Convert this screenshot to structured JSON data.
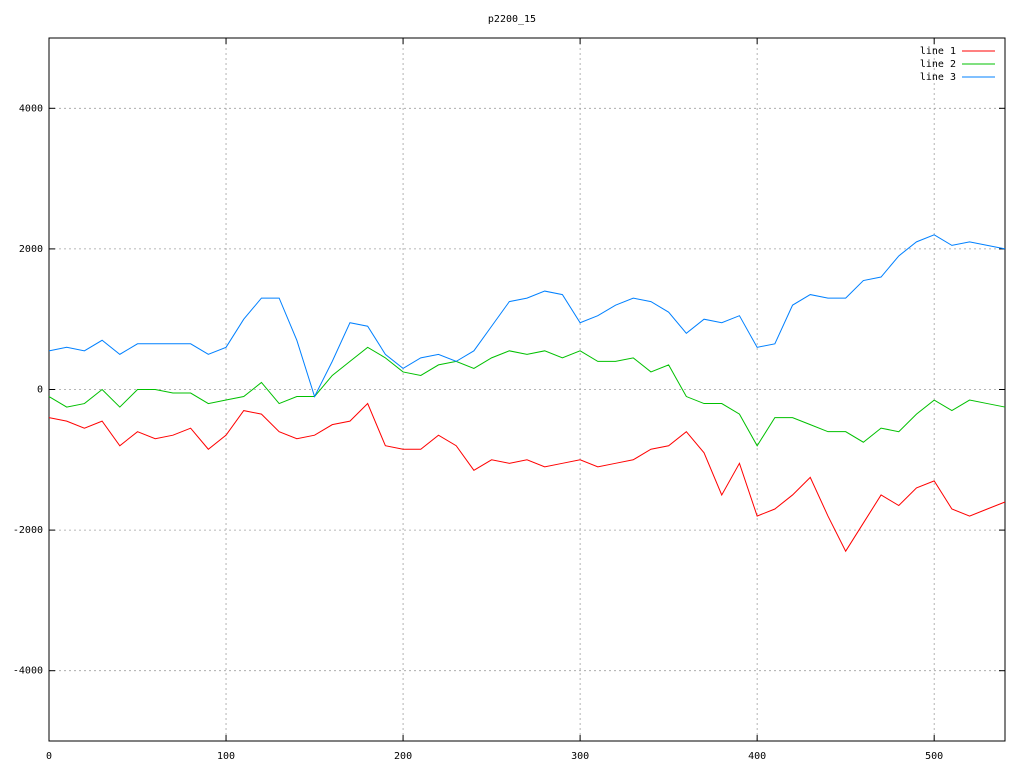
{
  "chart_data": {
    "type": "line",
    "title": "p2200_15",
    "x": [
      0,
      10,
      20,
      30,
      40,
      50,
      60,
      70,
      80,
      90,
      100,
      110,
      120,
      130,
      140,
      150,
      160,
      170,
      180,
      190,
      200,
      210,
      220,
      230,
      240,
      250,
      260,
      270,
      280,
      290,
      300,
      310,
      320,
      330,
      340,
      350,
      360,
      370,
      380,
      390,
      400,
      410,
      420,
      430,
      440,
      450,
      460,
      470,
      480,
      490,
      500,
      510,
      520,
      530,
      540
    ],
    "series": [
      {
        "name": "line 1",
        "color": "#ff0000",
        "values": [
          -400,
          -450,
          -550,
          -450,
          -800,
          -600,
          -700,
          -650,
          -550,
          -850,
          -650,
          -300,
          -350,
          -600,
          -700,
          -650,
          -500,
          -450,
          -200,
          -800,
          -850,
          -850,
          -650,
          -800,
          -1150,
          -1000,
          -1050,
          -1000,
          -1100,
          -1050,
          -1000,
          -1100,
          -1050,
          -1000,
          -850,
          -800,
          -600,
          -900,
          -1500,
          -1050,
          -1800,
          -1700,
          -1500,
          -1250,
          -1800,
          -2300,
          -1900,
          -1500,
          -1650,
          -1400,
          -1300,
          -1700,
          -1800,
          -1700,
          -1600
        ]
      },
      {
        "name": "line 2",
        "color": "#00c000",
        "values": [
          -100,
          -250,
          -200,
          0,
          -250,
          0,
          0,
          -50,
          -50,
          -200,
          -150,
          -100,
          100,
          -200,
          -100,
          -100,
          200,
          400,
          600,
          450,
          250,
          200,
          350,
          400,
          300,
          450,
          550,
          500,
          550,
          450,
          550,
          400,
          400,
          450,
          250,
          350,
          -100,
          -200,
          -200,
          -350,
          -800,
          -400,
          -400,
          -500,
          -600,
          -600,
          -750,
          -550,
          -600,
          -350,
          -150,
          -300,
          -150,
          -200,
          -250
        ]
      },
      {
        "name": "line 3",
        "color": "#0080ff",
        "values": [
          550,
          600,
          550,
          700,
          500,
          650,
          650,
          650,
          650,
          500,
          600,
          1000,
          1300,
          1300,
          700,
          -100,
          400,
          950,
          900,
          500,
          300,
          450,
          500,
          400,
          550,
          900,
          1250,
          1300,
          1400,
          1350,
          950,
          1050,
          1200,
          1300,
          1250,
          1100,
          800,
          1000,
          950,
          1050,
          600,
          650,
          1200,
          1350,
          1300,
          1300,
          1550,
          1600,
          1900,
          2100,
          2200,
          2050,
          2100,
          2050,
          2000
        ]
      }
    ],
    "xlim": [
      0,
      540
    ],
    "xticks": [
      0,
      100,
      200,
      300,
      400,
      500
    ],
    "ylim": [
      -5000,
      5000
    ],
    "yticks": [
      -4000,
      -2000,
      0,
      2000,
      4000
    ],
    "grid": true,
    "legend": "top-right"
  }
}
